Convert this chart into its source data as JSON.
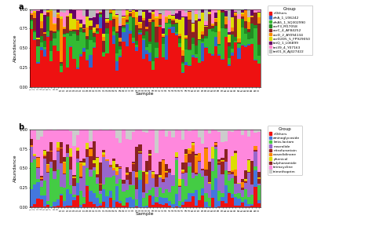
{
  "n_samples": 70,
  "panel_a": {
    "title": "a",
    "ylabel": "Abundance",
    "xlabel": "Sample",
    "ylim": [
      0,
      1
    ],
    "yticks": [
      0.0,
      0.25,
      0.5,
      0.75,
      1.0
    ],
    "groups": [
      {
        "name": "nOthers",
        "color": "#EE1111",
        "alpha": [
          4.0
        ]
      },
      {
        "name": "dfrA_1_U36242",
        "color": "#3366CC",
        "alpha": [
          0.4
        ]
      },
      {
        "name": "dfrA5_1_SQ302990",
        "color": "#33BB33",
        "alpha": [
          1.2
        ]
      },
      {
        "name": "acrF3_M17058",
        "color": "#228B22",
        "alpha": [
          0.7
        ]
      },
      {
        "name": "acrC_4_AF84252",
        "color": "#8B2222",
        "alpha": [
          0.8
        ]
      },
      {
        "name": "acrD_2_AY094134",
        "color": "#FF8C00",
        "alpha": [
          0.5
        ]
      },
      {
        "name": "acrD2D5_5_FP929050",
        "color": "#DDDD00",
        "alpha": [
          0.5
        ]
      },
      {
        "name": "tetQ_1_L06899",
        "color": "#660066",
        "alpha": [
          0.4
        ]
      },
      {
        "name": "tet39_4_Y07163",
        "color": "#FF88CC",
        "alpha": [
          0.4
        ]
      },
      {
        "name": "tet01_8_AJ427422",
        "color": "#BBBBBB",
        "alpha": [
          0.3
        ]
      }
    ],
    "seed": 101,
    "concentration": [
      4.0,
      0.4,
      1.2,
      0.7,
      0.8,
      0.5,
      0.5,
      0.4,
      0.4,
      0.3
    ]
  },
  "panel_b": {
    "title": "b",
    "ylabel": "Abundance",
    "xlabel": "Sample",
    "ylim": [
      0,
      1
    ],
    "yticks": [
      0.0,
      0.25,
      0.5,
      0.75,
      1.0
    ],
    "groups": [
      {
        "name": "nOthers",
        "color": "#EE1111"
      },
      {
        "name": "aminoglycoside",
        "color": "#4477DD"
      },
      {
        "name": "beta-lactam",
        "color": "#44CC44"
      },
      {
        "name": "macrolide",
        "color": "#9966CC"
      },
      {
        "name": "nitrofurantoin",
        "color": "#992222"
      },
      {
        "name": "oxazolidinone",
        "color": "#FF8800"
      },
      {
        "name": "phenicol",
        "color": "#DDDD00"
      },
      {
        "name": "sulphonamide",
        "color": "#882222"
      },
      {
        "name": "tetracycline",
        "color": "#FF88DD"
      },
      {
        "name": "trimethoprim",
        "color": "#CCCCCC"
      }
    ],
    "seed": 202,
    "concentration": [
      0.6,
      1.0,
      2.0,
      1.5,
      0.5,
      0.4,
      0.4,
      0.5,
      3.5,
      0.4
    ]
  }
}
